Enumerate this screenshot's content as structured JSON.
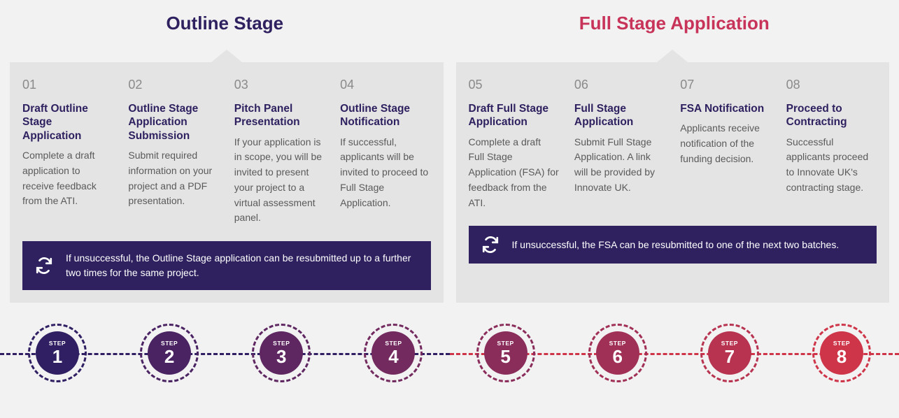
{
  "stages": [
    {
      "title": "Outline Stage",
      "title_color": "#2f2160",
      "note": "If unsuccessful, the Outline Stage application can be resubmitted up to a further two times for the same project.",
      "note_bg": "#2f2160"
    },
    {
      "title": "Full Stage Application",
      "title_color": "#c8335a",
      "note": "If unsuccessful, the FSA can be resubmitted to one of the next two batches.",
      "note_bg": "#2f2160"
    }
  ],
  "steps": [
    {
      "num": "01",
      "title": "Draft\nOutline Stage Application",
      "desc": "Complete a draft application to receive feedback from the ATI."
    },
    {
      "num": "02",
      "title": "Outline Stage Application Submission",
      "desc": "Submit required information on your project and a PDF presentation."
    },
    {
      "num": "03",
      "title": "Pitch Panel Presentation",
      "desc": "If your application is in scope, you will be invited to present your project to a virtual assessment panel."
    },
    {
      "num": "04",
      "title": "Outline Stage Notification",
      "desc": "If successful, applicants will be invited to proceed to Full Stage Application."
    },
    {
      "num": "05",
      "title": "Draft Full Stage Application",
      "desc": "Complete a draft Full Stage Application (FSA) for feedback from the ATI."
    },
    {
      "num": "06",
      "title": "Full Stage Application",
      "desc": "Submit Full Stage Application. A link will be provided by Innovate UK."
    },
    {
      "num": "07",
      "title": "FSA Notification",
      "desc": "Applicants receive notification of the funding decision."
    },
    {
      "num": "08",
      "title": "Proceed to Contracting",
      "desc": "Successful applicants proceed to Innovate UK's contracting stage."
    }
  ],
  "timeline": {
    "circle_label": "STEP",
    "numbers": [
      "1",
      "2",
      "3",
      "4",
      "5",
      "6",
      "7",
      "8"
    ],
    "colors": [
      "#302063",
      "#4a2363",
      "#5f2761",
      "#732a5f",
      "#8b2d5b",
      "#a13056",
      "#b73350",
      "#cf3549"
    ],
    "dash_left_color": "#302063",
    "dash_right_color": "#cf3549"
  }
}
